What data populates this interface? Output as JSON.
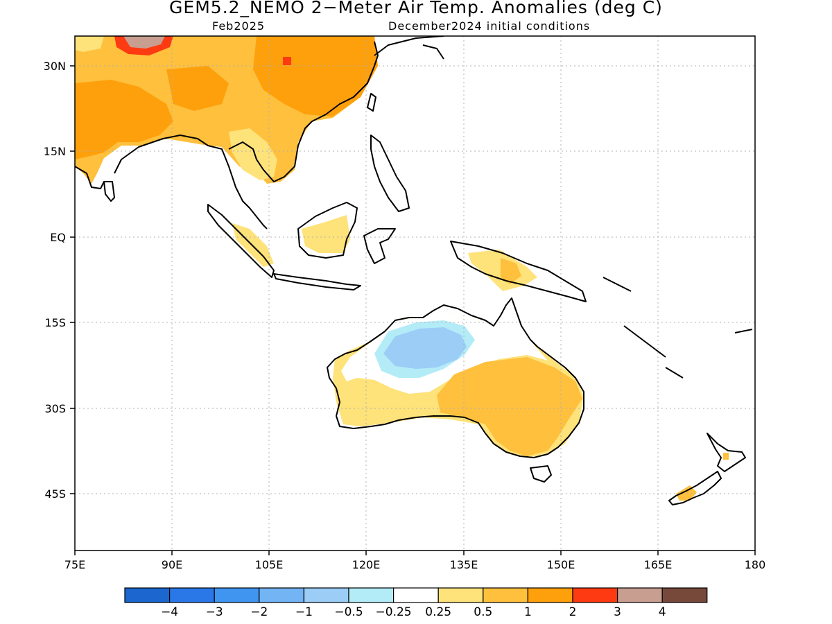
{
  "title": "GEM5.2_NEMO 2−Meter Air Temp. Anomalies (deg C)",
  "subtitle_left": "Feb2025",
  "subtitle_right": "December2024 initial conditions",
  "lat_labels": [
    "30N",
    "15N",
    "EQ",
    "15S",
    "30S",
    "45S"
  ],
  "lon_labels": [
    "75E",
    "90E",
    "105E",
    "120E",
    "135E",
    "150E",
    "165E",
    "180"
  ],
  "colorbar": {
    "colors": [
      "#1b66cf",
      "#2a78e8",
      "#3f95ef",
      "#73b4f5",
      "#9bcdf7",
      "#b3ecf7",
      "#ffffff",
      "#fee27a",
      "#fec03d",
      "#fea00c",
      "#fe3a12",
      "#c89e90",
      "#77493b"
    ],
    "labels": [
      "−4",
      "−3",
      "−2",
      "−1",
      "−0.5",
      "−0.25",
      "0.25",
      "0.5",
      "1",
      "2",
      "3",
      "4"
    ]
  }
}
